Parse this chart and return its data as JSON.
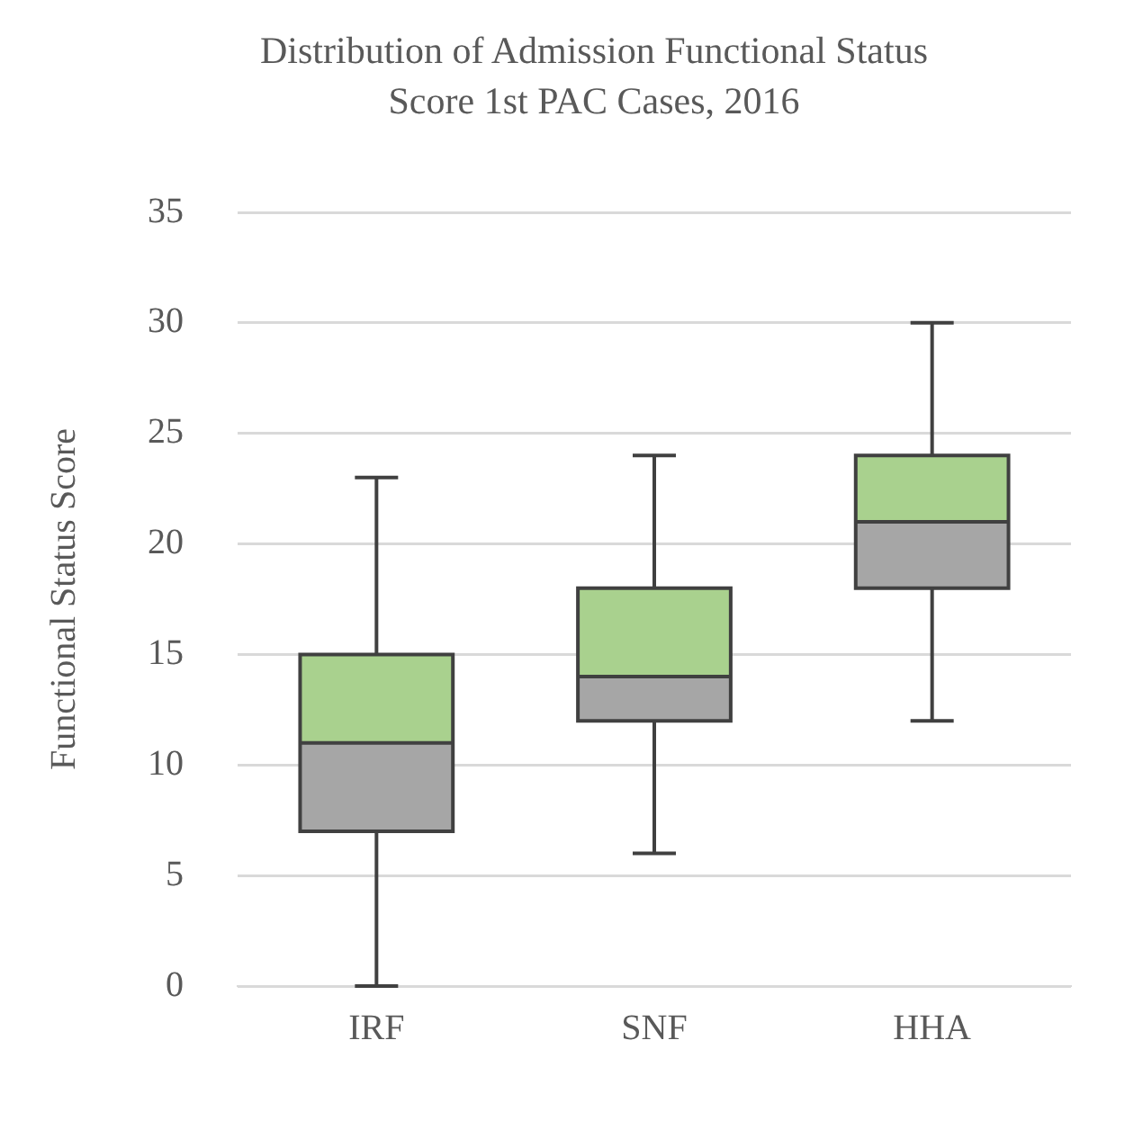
{
  "chart_data": {
    "type": "box",
    "title": "Distribution of Admission Functional Status Score 1st PAC Cases, 2016",
    "ylabel": "Functional Status Score",
    "categories": [
      "IRF",
      "SNF",
      "HHA"
    ],
    "boxes": [
      {
        "low": 0,
        "q1": 7,
        "median": 11,
        "q3": 15,
        "high": 23
      },
      {
        "low": 6,
        "q1": 12,
        "median": 14,
        "q3": 18,
        "high": 24
      },
      {
        "low": 12,
        "q1": 18,
        "median": 21,
        "q3": 24,
        "high": 30
      }
    ],
    "color": "#a9d18e",
    "colors": [
      "#a6a6a6",
      "#a6a6a6",
      "#a6a6a6"
    ],
    "ylim": [
      0,
      35
    ],
    "yticks": [
      0,
      5,
      10,
      15,
      20,
      25,
      30,
      35
    ],
    "grid": "y",
    "legend": false
  }
}
